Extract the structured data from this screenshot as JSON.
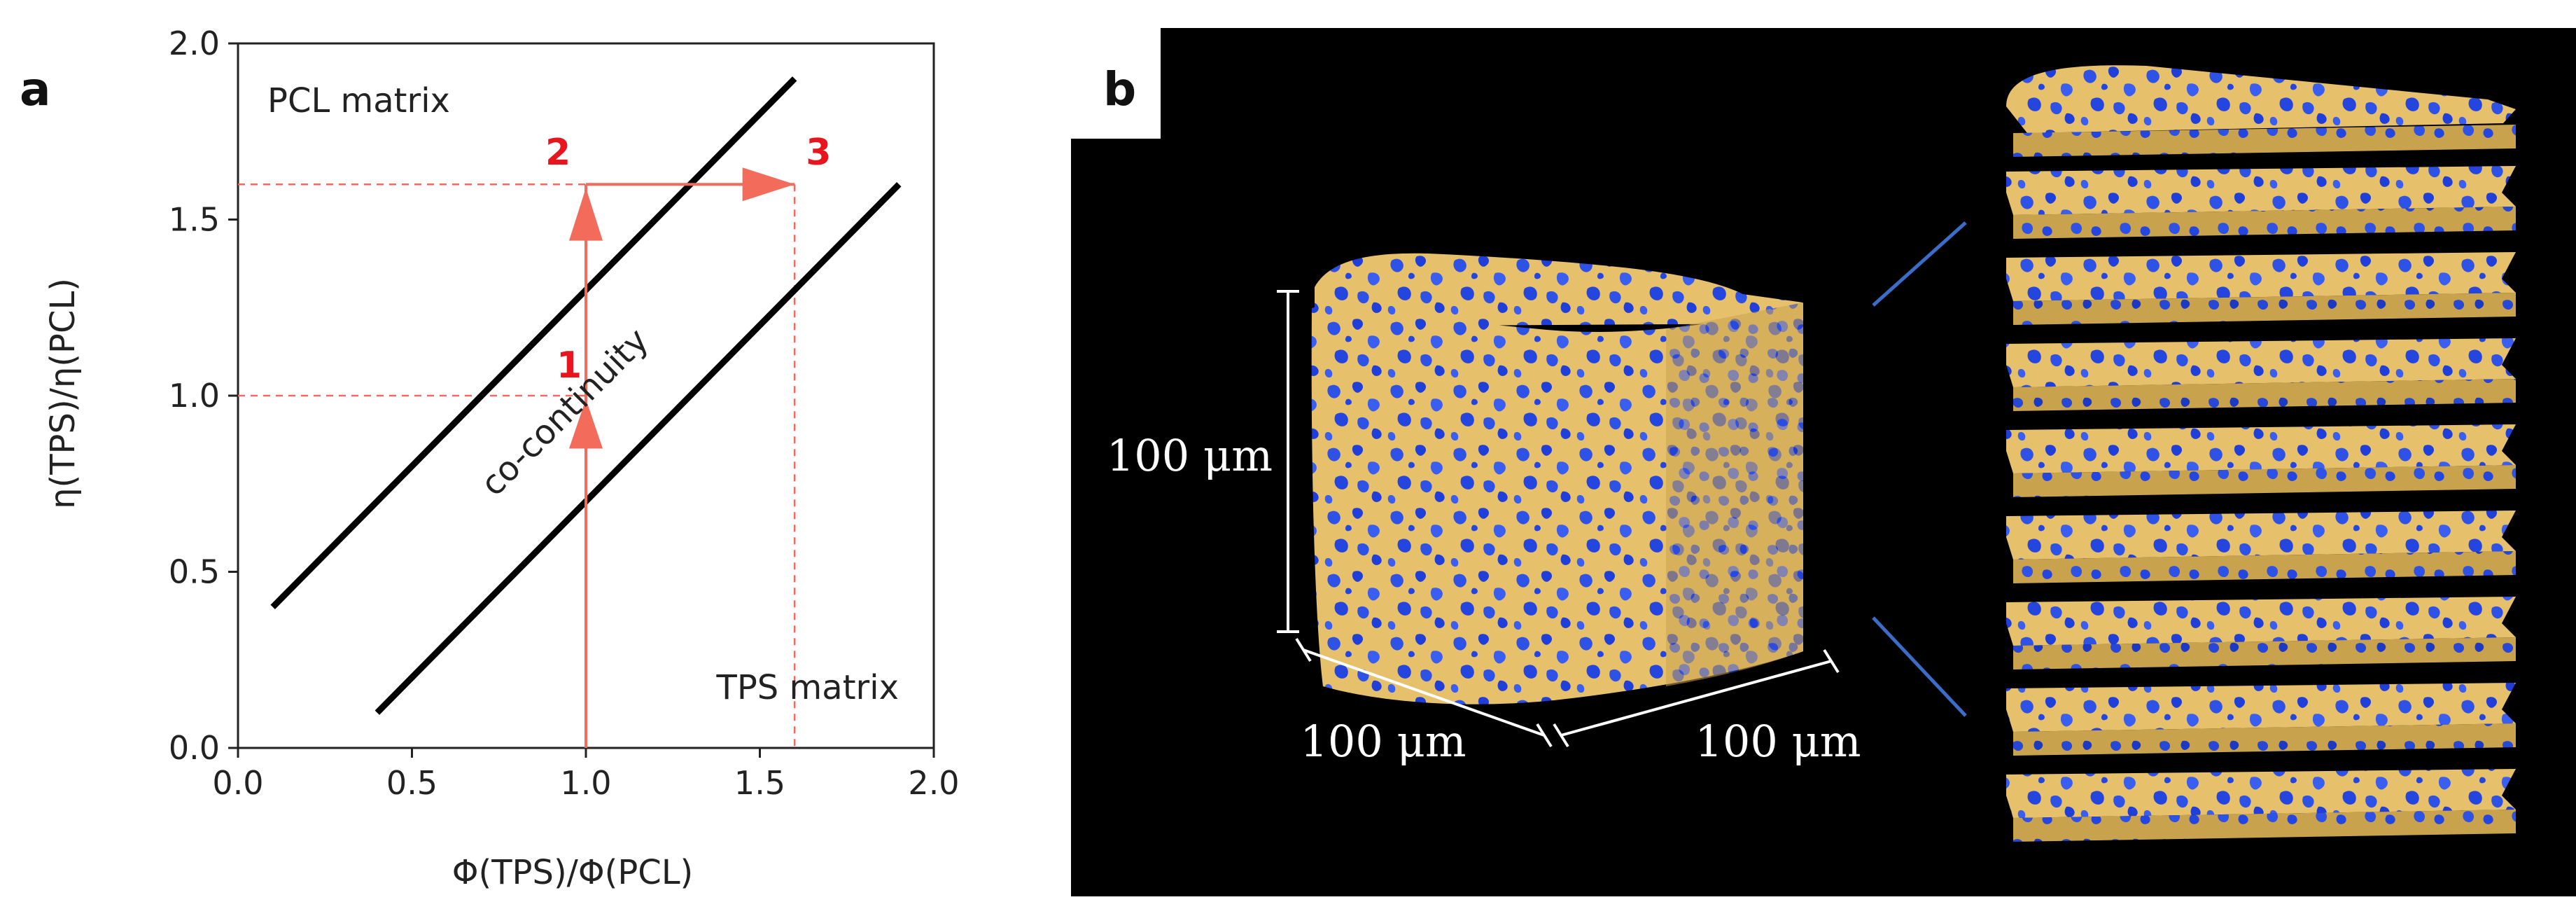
{
  "panel_a": {
    "label": "a",
    "chart_data": {
      "type": "line",
      "xlabel": "Φ(TPS)/Φ(PCL)",
      "ylabel": "η(TPS)/η(PCL)",
      "xlim": [
        0.0,
        2.0
      ],
      "ylim": [
        0.0,
        2.0
      ],
      "xticks": [
        "0.0",
        "0.5",
        "1.0",
        "1.5",
        "2.0"
      ],
      "yticks": [
        "0.0",
        "0.5",
        "1.0",
        "1.5",
        "2.0"
      ],
      "grid": false,
      "series": [
        {
          "x": [
            0.1,
            1.6
          ],
          "y": [
            0.4,
            1.9
          ]
        },
        {
          "x": [
            0.4,
            1.9
          ],
          "y": [
            0.1,
            1.6
          ]
        }
      ],
      "path_points": [
        {
          "label": "1",
          "x": 1.0,
          "y": 1.0
        },
        {
          "label": "2",
          "x": 1.0,
          "y": 1.6
        },
        {
          "label": "3",
          "x": 1.6,
          "y": 1.6
        }
      ],
      "annotations": {
        "top_left": "PCL matrix",
        "bottom_right": "TPS matrix",
        "band": "co-continuity"
      },
      "colors": {
        "lines": "#000000",
        "path": "#f26b5b",
        "dashed": "#f06a60",
        "labels": "#e8141e"
      }
    }
  },
  "panel_b": {
    "label": "b",
    "dim_height": "100 μm",
    "dim_depth": "100 μm",
    "dim_width": "100 μm",
    "slice_count": 9,
    "colors": {
      "background": "#000000",
      "matrix": "#e7c06b",
      "phase": "#2f52e6",
      "connector": "#3a6cc8"
    }
  }
}
